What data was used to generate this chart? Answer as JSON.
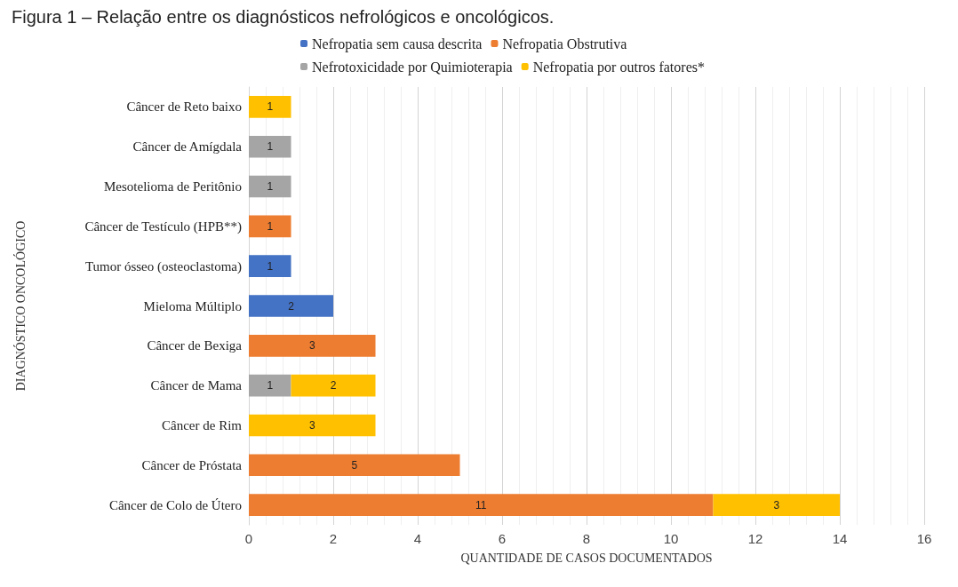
{
  "chart_data": {
    "type": "bar",
    "orientation": "horizontal",
    "stacked": true,
    "title": "Figura 1 – Relação entre os diagnósticos nefrológicos e oncológicos.",
    "xlabel": "QUANTIDADE DE CASOS DOCUMENTADOS",
    "ylabel": "DIAGNÓSTICO ONCOLÓGICO",
    "categories": [
      "Câncer de Reto baixo",
      "Câncer de Amígdala",
      "Mesotelioma de Peritônio",
      "Câncer de Testículo (HPB**)",
      "Tumor ósseo (osteoclastoma)",
      "Mieloma Múltiplo",
      "Câncer de Bexiga",
      "Câncer de Mama",
      "Câncer de Rim",
      "Câncer de Próstata",
      "Câncer de Colo de Útero"
    ],
    "series": [
      {
        "name": "Nefropatia sem causa descrita",
        "color": "#4472c4",
        "values": [
          null,
          null,
          null,
          null,
          1,
          2,
          null,
          null,
          null,
          null,
          null
        ]
      },
      {
        "name": "Nefropatia Obstrutiva",
        "color": "#ed7d31",
        "values": [
          null,
          null,
          null,
          1,
          null,
          null,
          3,
          null,
          null,
          5,
          11
        ]
      },
      {
        "name": "Nefrotoxicidade por Quimioterapia",
        "color": "#a5a5a5",
        "values": [
          null,
          1,
          1,
          null,
          null,
          null,
          null,
          1,
          null,
          null,
          null
        ]
      },
      {
        "name": "Nefropatia por outros fatores*",
        "color": "#ffc000",
        "values": [
          1,
          null,
          null,
          null,
          null,
          null,
          null,
          2,
          3,
          null,
          3
        ]
      }
    ],
    "xlim": [
      0,
      16
    ],
    "xticks": [
      0,
      2,
      4,
      6,
      8,
      10,
      12,
      14,
      16
    ],
    "grid": "x",
    "legend": "top",
    "data_labels": true
  }
}
